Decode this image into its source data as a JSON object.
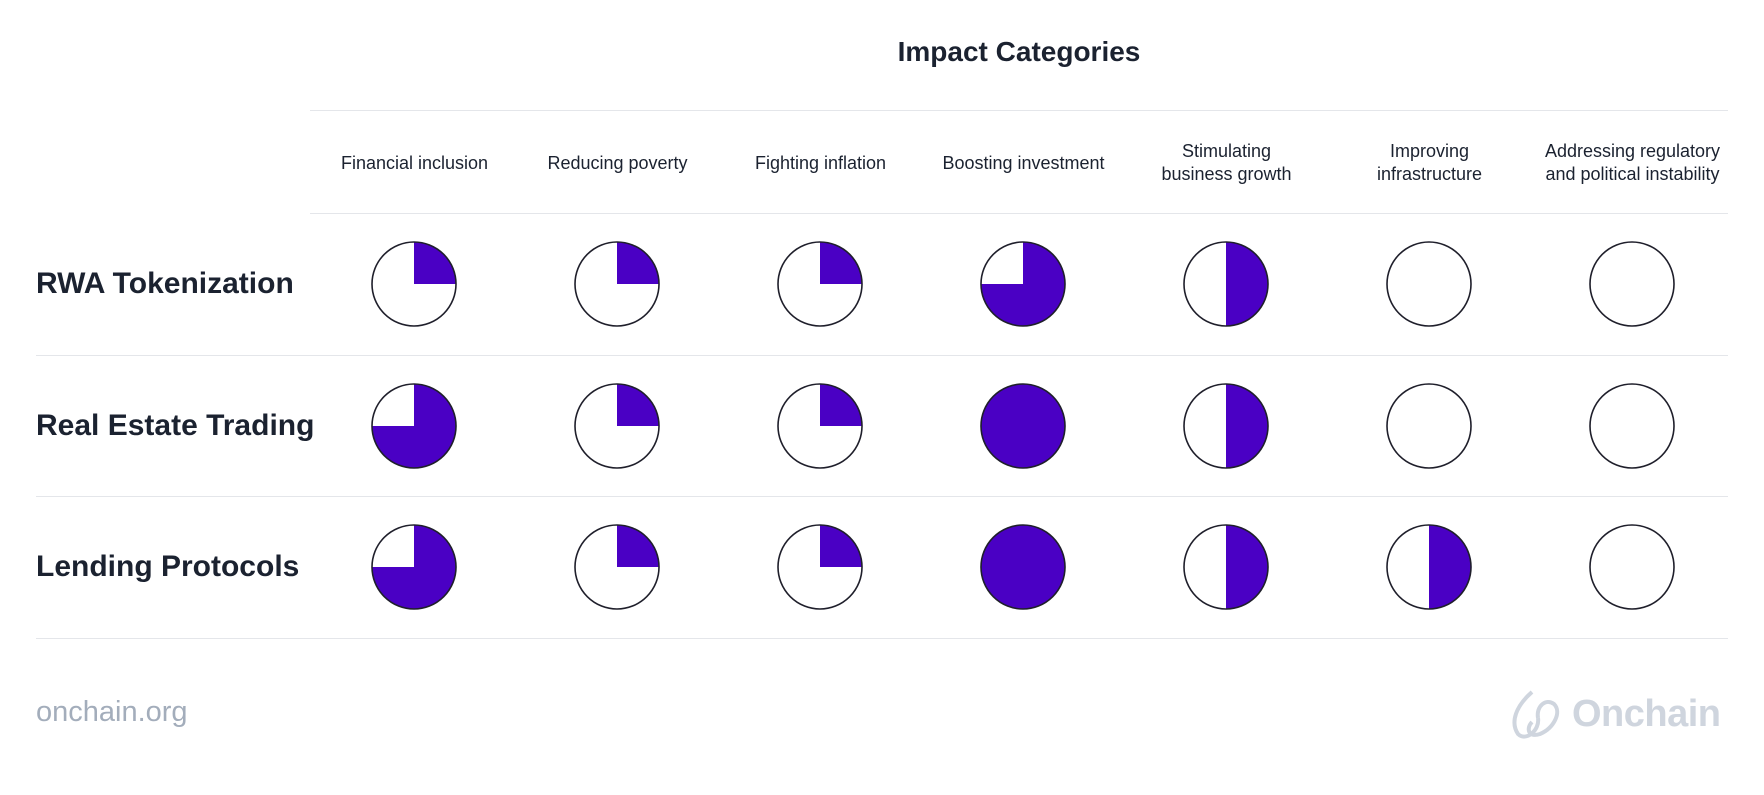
{
  "chart_data": {
    "type": "harvey-ball-matrix",
    "title": "Impact Categories",
    "columns": [
      [
        "Financial inclusion"
      ],
      [
        "Reducing poverty"
      ],
      [
        "Fighting inflation"
      ],
      [
        "Boosting investment"
      ],
      [
        "Stimulating",
        "business growth"
      ],
      [
        "Improving",
        "infrastructure"
      ],
      [
        "Addressing regulatory",
        "and political instability"
      ]
    ],
    "rows": [
      {
        "label": "RWA Tokenization",
        "values": [
          0.25,
          0.25,
          0.25,
          0.75,
          0.5,
          0,
          0
        ]
      },
      {
        "label": "Real Estate Trading",
        "values": [
          0.75,
          0.25,
          0.25,
          1,
          0.5,
          0,
          0
        ]
      },
      {
        "label": "Lending Protocols",
        "values": [
          0.75,
          0.25,
          0.25,
          1,
          0.5,
          0.5,
          0
        ]
      }
    ],
    "value_meaning": "fraction of circle filled",
    "fill_color": "#4a00c4",
    "outline_color": "#1f1f2b"
  },
  "footer": {
    "url": "onchain.org",
    "brand": "Onchain",
    "logo_icon": "onchain-logo-icon"
  }
}
